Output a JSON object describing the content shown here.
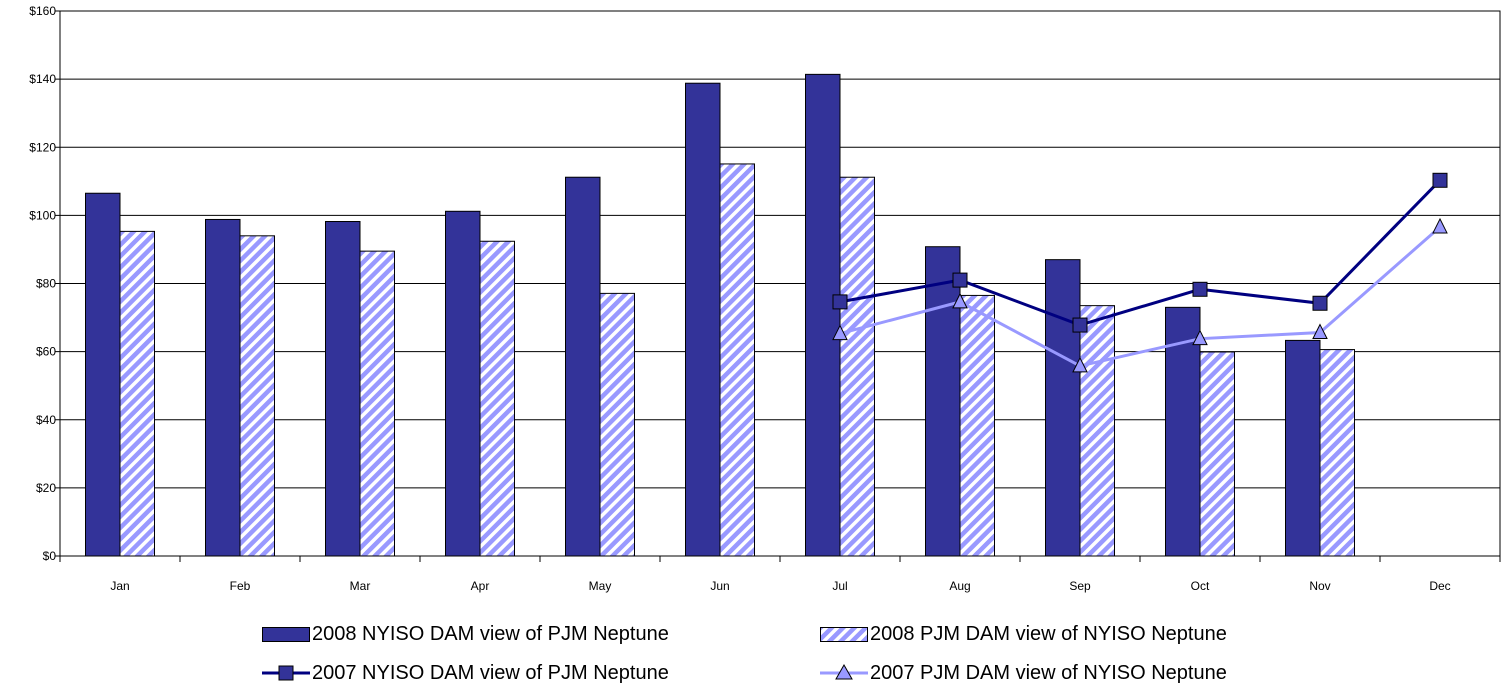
{
  "chart_data": {
    "type": "bar",
    "title": "",
    "xlabel": "",
    "ylabel": "",
    "ylim": [
      0,
      160
    ],
    "yticks": [
      "$0",
      "$20",
      "$40",
      "$60",
      "$80",
      "$100",
      "$120",
      "$140",
      "$160"
    ],
    "categories": [
      "Jan",
      "Feb",
      "Mar",
      "Apr",
      "May",
      "Jun",
      "Jul",
      "Aug",
      "Sep",
      "Oct",
      "Nov",
      "Dec"
    ],
    "grid": "horizontal",
    "legend_position": "bottom",
    "series": [
      {
        "name": "2008 NYISO DAM view of PJM Neptune",
        "kind": "bar",
        "style": "solid",
        "color": "#333399",
        "values": [
          106.5,
          98.8,
          98.2,
          101.2,
          111.2,
          138.8,
          141.4,
          90.8,
          87.0,
          73.0,
          63.3,
          null
        ]
      },
      {
        "name": "2008 PJM DAM view of NYISO Neptune",
        "kind": "bar",
        "style": "hatched",
        "color": "#9999FF",
        "values": [
          95.3,
          94.0,
          89.5,
          92.4,
          77.1,
          115.1,
          111.2,
          76.5,
          73.5,
          59.9,
          60.6,
          null
        ]
      },
      {
        "name": "2007 NYISO DAM view of PJM Neptune",
        "kind": "line",
        "marker": "square",
        "color": "#000080",
        "values": [
          null,
          null,
          null,
          null,
          null,
          null,
          74.6,
          81.0,
          67.8,
          78.3,
          74.2,
          110.3
        ]
      },
      {
        "name": "2007 PJM DAM view of NYISO Neptune",
        "kind": "line",
        "marker": "triangle",
        "color": "#9999FF",
        "values": [
          null,
          null,
          null,
          null,
          null,
          null,
          65.3,
          74.6,
          55.8,
          63.8,
          65.6,
          96.6
        ]
      }
    ]
  }
}
